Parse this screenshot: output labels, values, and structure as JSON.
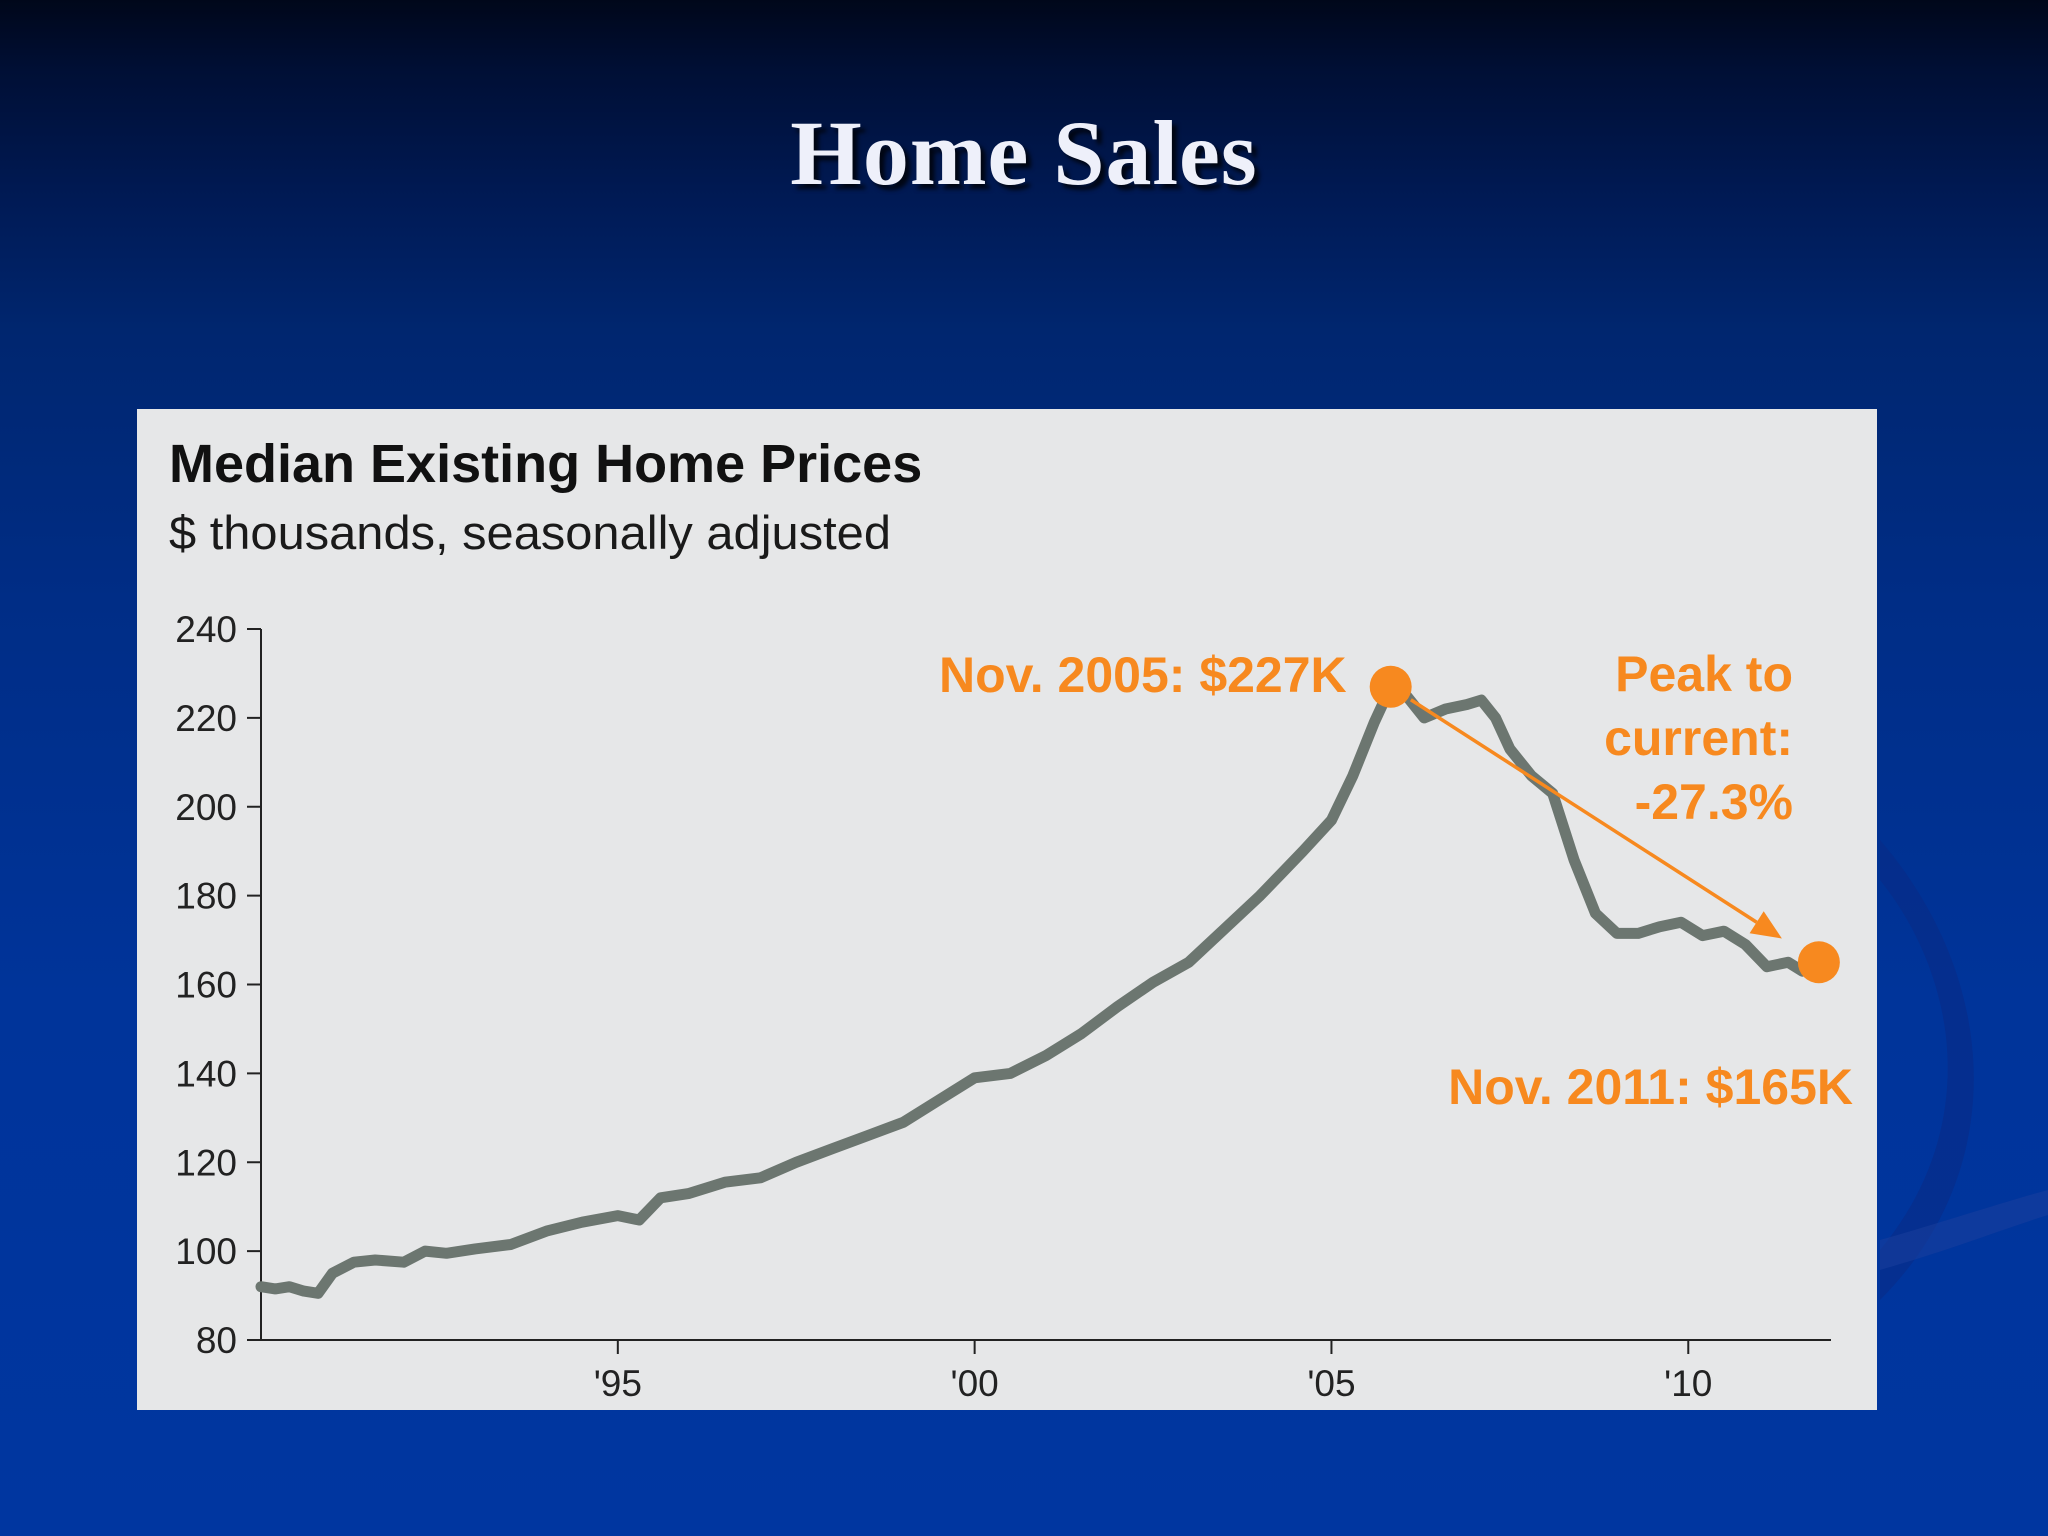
{
  "slide": {
    "title": "Home Sales"
  },
  "chart_data": {
    "type": "line",
    "title": "Median Existing Home Prices",
    "subtitle": "$ thousands, seasonally adjusted",
    "xlabel": "",
    "ylabel": "",
    "ylim": [
      80,
      240
    ],
    "xlim": [
      1990.0,
      2012.0
    ],
    "yticks": [
      80,
      100,
      120,
      140,
      160,
      180,
      200,
      220,
      240
    ],
    "xticks": [
      {
        "value": 1995,
        "label": "'95"
      },
      {
        "value": 2000,
        "label": "'00"
      },
      {
        "value": 2005,
        "label": "'05"
      },
      {
        "value": 2010,
        "label": "'10"
      }
    ],
    "grid": false,
    "series": [
      {
        "color": "#6c7670",
        "x": [
          1990.0,
          1990.2,
          1990.4,
          1990.6,
          1990.8,
          1991.0,
          1991.3,
          1991.6,
          1992.0,
          1992.3,
          1992.6,
          1993.0,
          1993.5,
          1994.0,
          1994.5,
          1995.0,
          1995.3,
          1995.6,
          1996.0,
          1996.5,
          1997.0,
          1997.5,
          1998.0,
          1998.5,
          1999.0,
          1999.5,
          2000.0,
          2000.5,
          2001.0,
          2001.5,
          2002.0,
          2002.5,
          2003.0,
          2003.5,
          2004.0,
          2004.3,
          2004.6,
          2005.0,
          2005.3,
          2005.6,
          2005.83,
          2006.0,
          2006.3,
          2006.6,
          2006.9,
          2007.1,
          2007.3,
          2007.5,
          2007.8,
          2008.1,
          2008.4,
          2008.7,
          2009.0,
          2009.3,
          2009.6,
          2009.9,
          2010.2,
          2010.5,
          2010.8,
          2011.1,
          2011.4,
          2011.6,
          2011.83
        ],
        "values": [
          92,
          91.5,
          92,
          91,
          90.5,
          95,
          97.5,
          98,
          97.5,
          100,
          99.5,
          100.5,
          101.5,
          104.5,
          106.5,
          108,
          107,
          112,
          113,
          115.5,
          116.5,
          120,
          123,
          126,
          129,
          134,
          139,
          140,
          144,
          149,
          155,
          160.5,
          165,
          172.5,
          180,
          185,
          190,
          197,
          207,
          219,
          227,
          226,
          220,
          222,
          223,
          224,
          220,
          213,
          207,
          203,
          188,
          176,
          171.5,
          171.5,
          173,
          174,
          171,
          172,
          169,
          164,
          165,
          163,
          165
        ]
      }
    ],
    "annotations": {
      "peak": {
        "x": 2005.83,
        "y": 227,
        "label": "Nov. 2005: $227K"
      },
      "current": {
        "x": 2011.83,
        "y": 165,
        "label": "Nov. 2011: $165K"
      },
      "change_lines": [
        "Peak to",
        "current:",
        "-27.3%"
      ],
      "color": "#f7891f"
    }
  }
}
